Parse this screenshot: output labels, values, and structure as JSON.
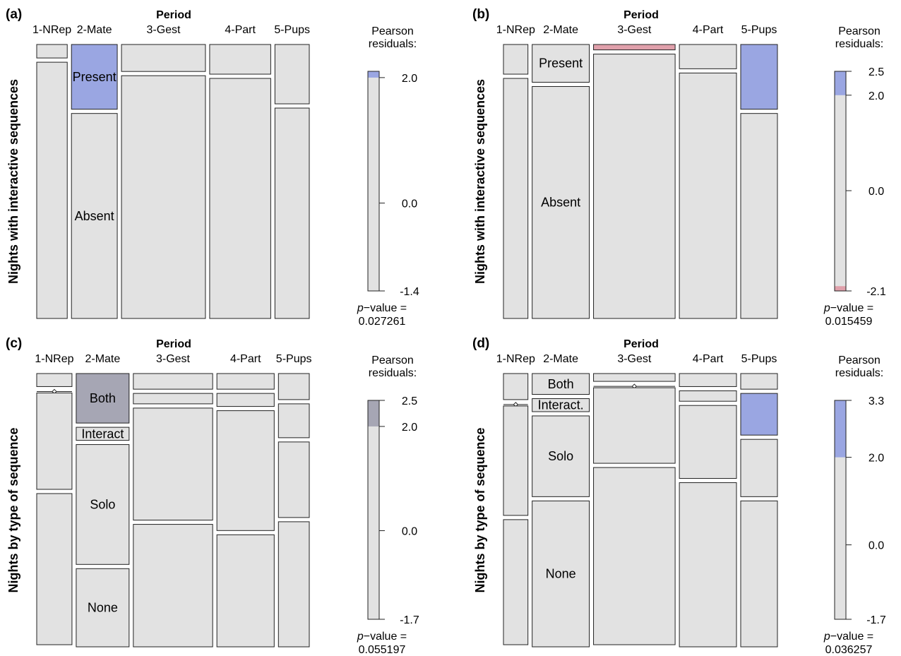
{
  "colors": {
    "neutral": "#e2e2e2",
    "positive": "#9aa6e2",
    "positive_gray": "#a6a6b4",
    "negative": "#e0a0ab",
    "stroke": "#222222"
  },
  "chart_data": [
    {
      "type": "mosaic",
      "panel": "(a)",
      "column_title": "Period",
      "ylabel": "Nights with interactive sequences",
      "columns": [
        "1-NRep",
        "2-Mate",
        "3-Gest",
        "4-Part",
        "5-Pups"
      ],
      "rows": [
        "Present",
        "Absent"
      ],
      "column_props": [
        0.08,
        0.12,
        0.22,
        0.16,
        0.09
      ],
      "row_props": [
        [
          0.05,
          0.95
        ],
        [
          0.24,
          0.76
        ],
        [
          0.1,
          0.9
        ],
        [
          0.11,
          0.89
        ],
        [
          0.22,
          0.78
        ]
      ],
      "residual_color": [
        [
          "neutral",
          "neutral"
        ],
        [
          "positive",
          "neutral"
        ],
        [
          "neutral",
          "neutral"
        ],
        [
          "neutral",
          "neutral"
        ],
        [
          "neutral",
          "neutral"
        ]
      ],
      "cell_labels": [
        {
          "col": 1,
          "row": 0,
          "text": "Present"
        },
        {
          "col": 1,
          "row": 1,
          "text": "Absent"
        }
      ],
      "legend": {
        "title_line1": "Pearson",
        "title_line2": "residuals:",
        "min": -1.4,
        "max": 2.1,
        "threshold": 2.0,
        "threshold_color": "positive",
        "ticks": [
          {
            "value": 2.0,
            "label": "2.0"
          },
          {
            "value": 0.0,
            "label": "0.0"
          },
          {
            "value": -1.4,
            "label": "-1.4"
          }
        ],
        "pvalue_prefix": "p",
        "pvalue_suffix": "−value =",
        "pvalue": "0.027261"
      }
    },
    {
      "type": "mosaic",
      "panel": "(b)",
      "column_title": "Period",
      "ylabel": "Nights with interactive sequences",
      "columns": [
        "1-NRep",
        "2-Mate",
        "3-Gest",
        "4-Part",
        "5-Pups"
      ],
      "rows": [
        "Present",
        "Absent"
      ],
      "column_props": [
        0.06,
        0.14,
        0.2,
        0.14,
        0.09
      ],
      "row_props": [
        [
          0.11,
          0.89
        ],
        [
          0.14,
          0.86
        ],
        [
          0.02,
          0.98
        ],
        [
          0.09,
          0.91
        ],
        [
          0.24,
          0.76
        ]
      ],
      "residual_color": [
        [
          "neutral",
          "neutral"
        ],
        [
          "neutral",
          "neutral"
        ],
        [
          "negative",
          "neutral"
        ],
        [
          "neutral",
          "neutral"
        ],
        [
          "positive",
          "neutral"
        ]
      ],
      "cell_labels": [
        {
          "col": 1,
          "row": 0,
          "text": "Present"
        },
        {
          "col": 1,
          "row": 1,
          "text": "Absent"
        }
      ],
      "legend": {
        "title_line1": "Pearson",
        "title_line2": "residuals:",
        "min": -2.1,
        "max": 2.5,
        "threshold": 2.0,
        "threshold_color": "positive",
        "neg_threshold": -2.0,
        "neg_color": "negative",
        "ticks": [
          {
            "value": 2.5,
            "label": "2.5"
          },
          {
            "value": 2.0,
            "label": "2.0"
          },
          {
            "value": 0.0,
            "label": "0.0"
          },
          {
            "value": -2.1,
            "label": "-2.1"
          }
        ],
        "pvalue_prefix": "p",
        "pvalue_suffix": "−value =",
        "pvalue": "0.015459"
      }
    },
    {
      "type": "mosaic",
      "panel": "(c)",
      "column_title": "Period",
      "ylabel": "Nights by type of sequence",
      "columns": [
        "1-NRep",
        "2-Mate",
        "3-Gest",
        "4-Part",
        "5-Pups"
      ],
      "rows": [
        "Both",
        "Interact",
        "Solo",
        "None"
      ],
      "column_props": [
        0.08,
        0.12,
        0.18,
        0.13,
        0.07
      ],
      "row_props": [
        [
          0.05,
          0.0,
          0.37,
          0.58
        ],
        [
          0.19,
          0.05,
          0.46,
          0.3
        ],
        [
          0.06,
          0.04,
          0.43,
          0.47
        ],
        [
          0.06,
          0.05,
          0.46,
          0.43
        ],
        [
          0.1,
          0.13,
          0.29,
          0.48
        ]
      ],
      "residual_color": [
        [
          "neutral",
          "neutral",
          "neutral",
          "neutral"
        ],
        [
          "positive_gray",
          "neutral",
          "neutral",
          "neutral"
        ],
        [
          "neutral",
          "neutral",
          "neutral",
          "neutral"
        ],
        [
          "neutral",
          "neutral",
          "neutral",
          "neutral"
        ],
        [
          "neutral",
          "neutral",
          "neutral",
          "neutral"
        ]
      ],
      "cell_labels": [
        {
          "col": 1,
          "row": 0,
          "text": "Both"
        },
        {
          "col": 1,
          "row": 1,
          "text": "Interact"
        },
        {
          "col": 1,
          "row": 2,
          "text": "Solo"
        },
        {
          "col": 1,
          "row": 3,
          "text": "None"
        }
      ],
      "legend": {
        "title_line1": "Pearson",
        "title_line2": "residuals:",
        "min": -1.7,
        "max": 2.5,
        "threshold": 2.0,
        "threshold_color": "positive_gray",
        "ticks": [
          {
            "value": 2.5,
            "label": "2.5"
          },
          {
            "value": 2.0,
            "label": "2.0"
          },
          {
            "value": 0.0,
            "label": "0.0"
          },
          {
            "value": -1.7,
            "label": "-1.7"
          }
        ],
        "pvalue_prefix": "p",
        "pvalue_suffix": "−value =",
        "pvalue": "0.055197"
      }
    },
    {
      "type": "mosaic",
      "panel": "(d)",
      "column_title": "Period",
      "ylabel": "Nights by type of sequence",
      "columns": [
        "1-NRep",
        "2-Mate",
        "3-Gest",
        "4-Part",
        "5-Pups"
      ],
      "rows": [
        "Both",
        "Interact.",
        "Solo",
        "None"
      ],
      "column_props": [
        0.06,
        0.14,
        0.2,
        0.14,
        0.09
      ],
      "row_props": [
        [
          0.1,
          0.0,
          0.42,
          0.48
        ],
        [
          0.08,
          0.05,
          0.31,
          0.56
        ],
        [
          0.03,
          0.0,
          0.29,
          0.68
        ],
        [
          0.05,
          0.04,
          0.28,
          0.63
        ],
        [
          0.06,
          0.16,
          0.22,
          0.56
        ]
      ],
      "residual_color": [
        [
          "neutral",
          "neutral",
          "neutral",
          "neutral"
        ],
        [
          "neutral",
          "neutral",
          "neutral",
          "neutral"
        ],
        [
          "neutral",
          "neutral",
          "neutral",
          "neutral"
        ],
        [
          "neutral",
          "neutral",
          "neutral",
          "neutral"
        ],
        [
          "neutral",
          "positive",
          "neutral",
          "neutral"
        ]
      ],
      "cell_labels": [
        {
          "col": 1,
          "row": 0,
          "text": "Both"
        },
        {
          "col": 1,
          "row": 1,
          "text": "Interact."
        },
        {
          "col": 1,
          "row": 2,
          "text": "Solo"
        },
        {
          "col": 1,
          "row": 3,
          "text": "None"
        }
      ],
      "legend": {
        "title_line1": "Pearson",
        "title_line2": "residuals:",
        "min": -1.7,
        "max": 3.3,
        "threshold": 2.0,
        "threshold_color": "positive",
        "ticks": [
          {
            "value": 3.3,
            "label": "3.3"
          },
          {
            "value": 2.0,
            "label": "2.0"
          },
          {
            "value": 0.0,
            "label": "0.0"
          },
          {
            "value": -1.7,
            "label": "-1.7"
          }
        ],
        "pvalue_prefix": "p",
        "pvalue_suffix": "−value =",
        "pvalue": "0.036257"
      }
    }
  ]
}
